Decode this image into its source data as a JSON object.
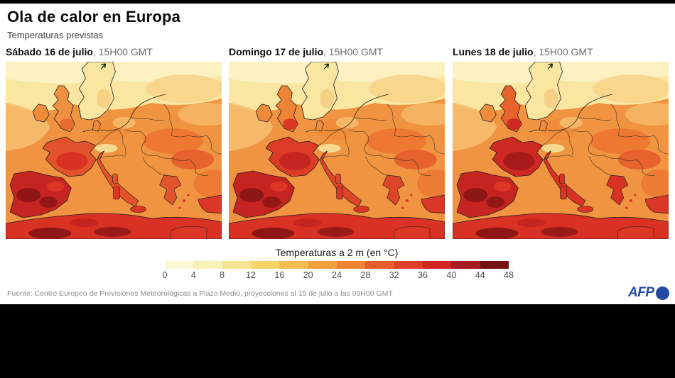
{
  "header": {
    "title": "Ola de calor en Europa",
    "subtitle": "Temperaturas previstas"
  },
  "panels": [
    {
      "date": "Sábado 16 de julio",
      "time": ", 15H00 GMT"
    },
    {
      "date": "Domingo 17 de julio",
      "time": ", 15H00 GMT"
    },
    {
      "date": "Lunes 18 de julio",
      "time": ", 15H00 GMT"
    }
  ],
  "legend": {
    "title": "Temperaturas a 2 m (en °C)",
    "ticks": [
      "0",
      "4",
      "8",
      "12",
      "16",
      "20",
      "24",
      "28",
      "32",
      "36",
      "40",
      "44",
      "48"
    ],
    "colors": [
      "#fcf7d5",
      "#f9f0b5",
      "#f7e593",
      "#f8d468",
      "#f7bc4f",
      "#f4a03e",
      "#ef8434",
      "#e65e2b",
      "#de3f27",
      "#d02622",
      "#a81b1e",
      "#731113"
    ]
  },
  "footer": {
    "source": "Fuente: Centro Europeo de Previsiones Meteorológicas a Plazo Medio, proyecciones al 15 de julio a las 09H00 GMT",
    "brand": "AFP",
    "brand_color": "#2449a1"
  },
  "map_theme": {
    "palette": {
      "sea": "#f19442",
      "pale": "#f8e6a1",
      "cream": "#fbf1c3",
      "peach": "#f6c070",
      "paleOrange": "#f7d489",
      "light": "#f7dd96",
      "warm0": "#ef8c3b",
      "warm1": "#ed7431",
      "warm2": "#e65c2b",
      "red": "#dc3626",
      "deepRed": "#c62421",
      "maroon": "#8e1617",
      "africaRed": "#d93123",
      "line": "#26201a"
    },
    "days": [
      {
        "france": "#e2532b",
        "franceCore": "#d93123",
        "uk": "#ef9040",
        "ukSouth": "#e86a2f",
        "italy": "#e2532b",
        "balkan": "#e2532b"
      },
      {
        "france": "#dc3b26",
        "franceCore": "#c62421",
        "uk": "#ee8338",
        "ukSouth": "#dc3626",
        "italy": "#dc4528",
        "balkan": "#dc4528"
      },
      {
        "france": "#ce2822",
        "franceCore": "#a61a1c",
        "uk": "#e8622c",
        "ukSouth": "#ce2822",
        "italy": "#d93123",
        "balkan": "#d93123"
      }
    ]
  }
}
